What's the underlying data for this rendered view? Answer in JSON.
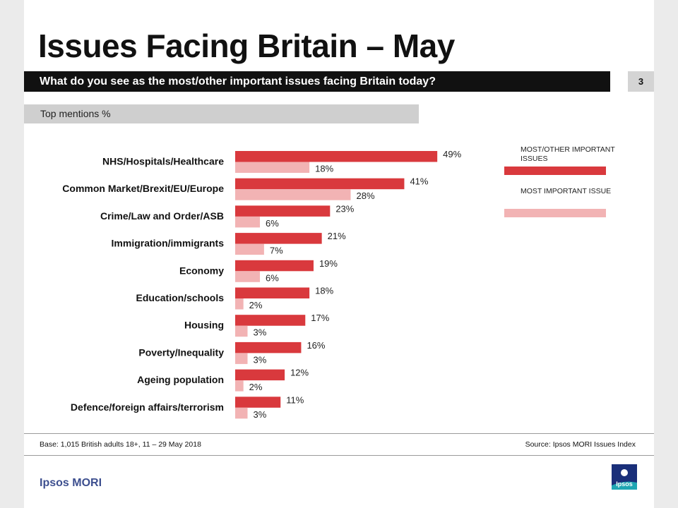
{
  "title": "Issues Facing Britain – May",
  "question": "What do you see as the most/other important issues facing Britain today?",
  "page_number": "3",
  "subtitle": "Top mentions %",
  "legend": {
    "most_other": "MOST/OTHER IMPORTANT ISSUES",
    "most": "MOST IMPORTANT ISSUE"
  },
  "footer": {
    "base": "Base: 1,015 British adults 18+, 11 – 29 May 2018",
    "source": "Source: Ipsos MORI Issues Index",
    "brand": "Ipsos MORI",
    "logo_text": "Ipsos"
  },
  "colors": {
    "most_other": "#d9393d",
    "most": "#f2b3b4",
    "brand": "#3d4f8f",
    "logo_bg": "#1a2f7a",
    "logo_accent": "#1fa6b3"
  },
  "chart_data": {
    "type": "bar",
    "orientation": "horizontal",
    "title": "Issues Facing Britain – May",
    "unit": "%",
    "categories": [
      "NHS/Hospitals/Healthcare",
      "Common Market/Brexit/EU/Europe",
      "Crime/Law and Order/ASB",
      "Immigration/immigrants",
      "Economy",
      "Education/schools",
      "Housing",
      "Poverty/Inequality",
      "Ageing population",
      "Defence/foreign affairs/terrorism"
    ],
    "series": [
      {
        "name": "MOST/OTHER IMPORTANT ISSUES",
        "values": [
          49,
          41,
          23,
          21,
          19,
          18,
          17,
          16,
          12,
          11
        ]
      },
      {
        "name": "MOST IMPORTANT ISSUE",
        "values": [
          18,
          28,
          6,
          7,
          6,
          2,
          3,
          3,
          2,
          3
        ]
      }
    ],
    "xlim": [
      0,
      100
    ],
    "grid": false,
    "legend_position": "right"
  }
}
